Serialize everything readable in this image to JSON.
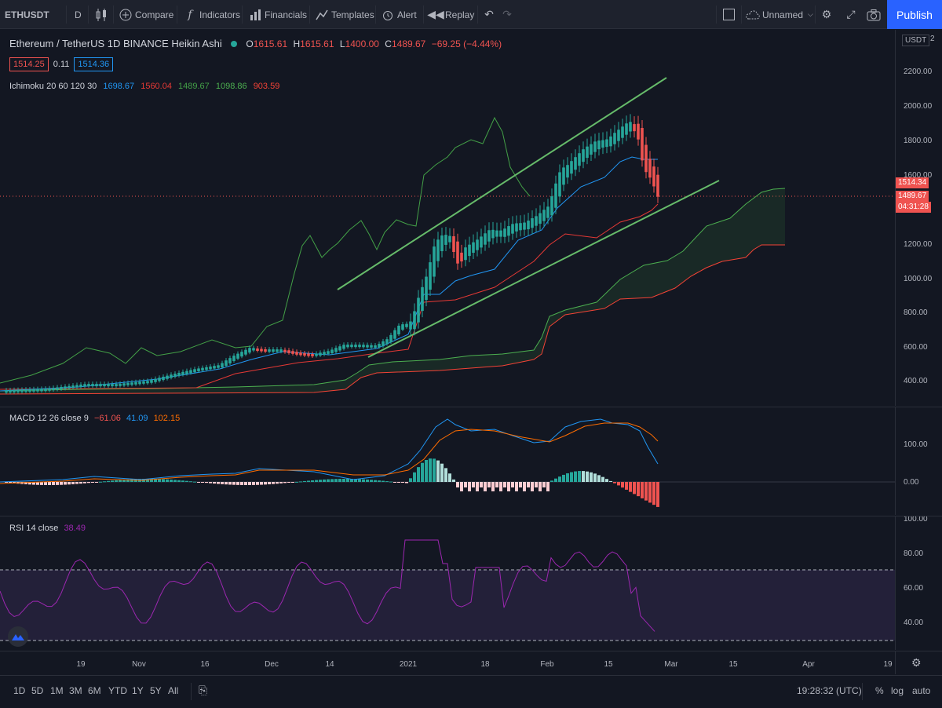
{
  "toolbar": {
    "symbol": "ETHUSDT",
    "interval": "D",
    "compare": "Compare",
    "indicators": "Indicators",
    "financials": "Financials",
    "templates": "Templates",
    "alert": "Alert",
    "replay": "Replay",
    "layout_name": "Unnamed",
    "publish": "Publish"
  },
  "legend": {
    "title": "Ethereum / TetherUS  1D  BINANCE  Heikin Ashi",
    "o_label": "O",
    "o": "1615.61",
    "h_label": "H",
    "h": "1615.61",
    "l_label": "L",
    "l": "1400.00",
    "c_label": "C",
    "c": "1489.67",
    "change": "−69.25 (−4.44%)",
    "bid": "1514.25",
    "spread": "0.11",
    "ask": "1514.36",
    "ichimoku_label": "Ichimoku 20 60 120 30",
    "ichi_v1": "1698.67",
    "ichi_v2": "1560.04",
    "ichi_v3": "1489.67",
    "ichi_v4": "1098.86",
    "ichi_v5": "903.59"
  },
  "macd": {
    "label": "MACD 12 26 close 9",
    "v1": "−61.06",
    "v2": "41.09",
    "v3": "102.15"
  },
  "rsi": {
    "label": "RSI 14 close",
    "v1": "38.49"
  },
  "price_axis": {
    "currency": "USDT",
    "ticks": [
      "2200.00",
      "2000.00",
      "1800.00",
      "1600.00",
      "1200.00",
      "1000.00",
      "800.00",
      "600.00",
      "400.00"
    ],
    "last_price": "1514.34",
    "close_price": "1489.67",
    "countdown": "04:31:28",
    "top_tick": "2"
  },
  "macd_axis": {
    "ticks": [
      "100.00",
      "0.00"
    ]
  },
  "rsi_axis": {
    "ticks": [
      "100.00",
      "80.00",
      "60.00",
      "40.00"
    ]
  },
  "time_axis": {
    "ticks": [
      "19",
      "Nov",
      "16",
      "Dec",
      "14",
      "2021",
      "18",
      "Feb",
      "15",
      "Mar",
      "15",
      "Apr",
      "19"
    ]
  },
  "bottombar": {
    "ranges": [
      "1D",
      "5D",
      "1M",
      "3M",
      "6M",
      "YTD",
      "1Y",
      "5Y",
      "All"
    ],
    "clock": "19:28:32 (UTC)",
    "percent": "%",
    "log": "log",
    "auto": "auto"
  },
  "colors": {
    "up": "#26a69a",
    "down": "#ef5350",
    "tenkan": "#2196f3",
    "kijun": "#e53935",
    "lagging": "#43a047",
    "spanA": "#4caf50",
    "spanB": "#f44336",
    "channel": "#66bb6a",
    "macd": "#2196f3",
    "signal": "#ff6d00",
    "rsi": "#9c27b0"
  },
  "icons": [
    "search-icon",
    "candles-icon",
    "plus-icon",
    "fx-icon",
    "bars-icon",
    "templates-icon",
    "alarm-icon",
    "replay-icon",
    "undo-icon",
    "redo-icon",
    "cloud-icon",
    "gear-icon",
    "fullscreen-icon",
    "camera-icon",
    "goto-icon",
    "settings-icon"
  ]
}
